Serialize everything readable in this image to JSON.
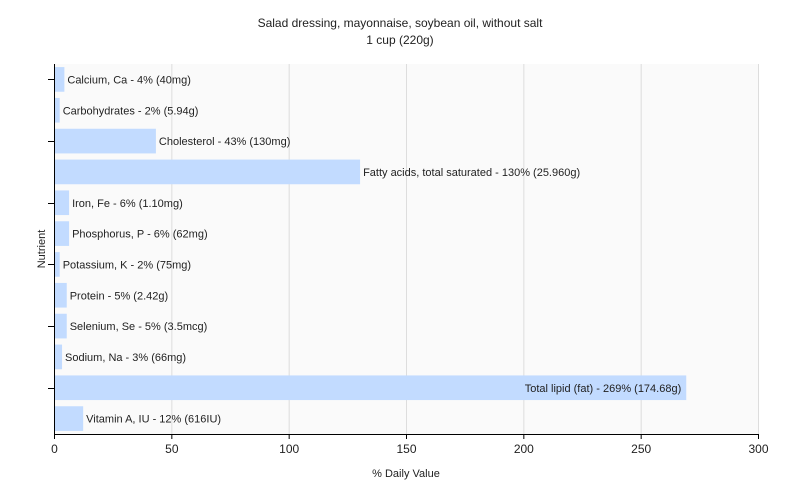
{
  "chart_data": {
    "type": "bar",
    "orientation": "horizontal",
    "title": "Salad dressing, mayonnaise, soybean oil, without salt",
    "subtitle": "1 cup (220g)",
    "xlabel": "% Daily Value",
    "ylabel": "Nutrient",
    "xlim": [
      0,
      300
    ],
    "xticks": [
      0,
      50,
      100,
      150,
      200,
      250,
      300
    ],
    "grid": true,
    "colors": {
      "bar": "#c2dbff",
      "grid": "#dddddd",
      "plot_bg": "#fafafa",
      "axis": "#000000"
    },
    "categories": [
      "Calcium, Ca",
      "Carbohydrates",
      "Cholesterol",
      "Fatty acids, total saturated",
      "Iron, Fe",
      "Phosphorus, P",
      "Potassium, K",
      "Protein",
      "Selenium, Se",
      "Sodium, Na",
      "Total lipid (fat)",
      "Vitamin A, IU"
    ],
    "values": [
      4,
      2,
      43,
      130,
      6,
      6,
      2,
      5,
      5,
      3,
      269,
      12
    ],
    "labels": [
      "Calcium, Ca - 4% (40mg)",
      "Carbohydrates - 2% (5.94g)",
      "Cholesterol - 43% (130mg)",
      "Fatty acids, total saturated - 130% (25.960g)",
      "Iron, Fe - 6% (1.10mg)",
      "Phosphorus, P - 6% (62mg)",
      "Potassium, K - 2% (75mg)",
      "Protein - 5% (2.42g)",
      "Selenium, Se - 5% (3.5mcg)",
      "Sodium, Na - 3% (66mg)",
      "Total lipid (fat) - 269% (174.68g)",
      "Vitamin A, IU - 12% (616IU)"
    ]
  }
}
